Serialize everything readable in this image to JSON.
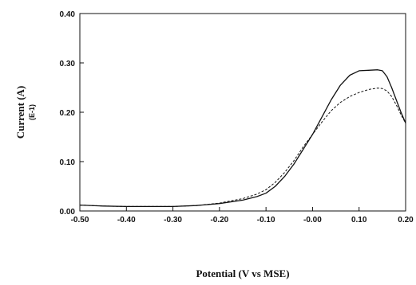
{
  "chart_data": {
    "type": "line",
    "title": "",
    "xlabel": "Potential (V vs MSE)",
    "ylabel": "Current (A)",
    "ylabel_unit": "(E-1)",
    "xlim": [
      -0.5,
      0.2
    ],
    "ylim": [
      0.0,
      0.4
    ],
    "x_ticks": [
      "-0.50",
      "-0.40",
      "-0.30",
      "-0.20",
      "-0.10",
      "-0.00",
      "0.10",
      "0.20"
    ],
    "y_ticks": [
      "0.00",
      "0.10",
      "0.20",
      "0.30",
      "0.40"
    ],
    "grid": false,
    "legend": "none",
    "series": [
      {
        "style": "solid",
        "color": "#111111",
        "points": [
          [
            -0.5,
            0.012
          ],
          [
            -0.45,
            0.01
          ],
          [
            -0.4,
            0.009
          ],
          [
            -0.35,
            0.009
          ],
          [
            -0.3,
            0.009
          ],
          [
            -0.25,
            0.011
          ],
          [
            -0.2,
            0.015
          ],
          [
            -0.15,
            0.022
          ],
          [
            -0.12,
            0.029
          ],
          [
            -0.1,
            0.036
          ],
          [
            -0.08,
            0.05
          ],
          [
            -0.06,
            0.07
          ],
          [
            -0.04,
            0.095
          ],
          [
            -0.02,
            0.125
          ],
          [
            0.0,
            0.155
          ],
          [
            0.02,
            0.19
          ],
          [
            0.04,
            0.225
          ],
          [
            0.06,
            0.255
          ],
          [
            0.08,
            0.275
          ],
          [
            0.1,
            0.284
          ],
          [
            0.12,
            0.285
          ],
          [
            0.14,
            0.286
          ],
          [
            0.15,
            0.284
          ],
          [
            0.16,
            0.272
          ],
          [
            0.17,
            0.25
          ],
          [
            0.18,
            0.225
          ],
          [
            0.19,
            0.2
          ],
          [
            0.2,
            0.178
          ]
        ]
      },
      {
        "style": "dashed",
        "color": "#111111",
        "points": [
          [
            -0.5,
            0.012
          ],
          [
            -0.45,
            0.01
          ],
          [
            -0.4,
            0.009
          ],
          [
            -0.35,
            0.009
          ],
          [
            -0.3,
            0.009
          ],
          [
            -0.25,
            0.011
          ],
          [
            -0.2,
            0.016
          ],
          [
            -0.15,
            0.025
          ],
          [
            -0.12,
            0.034
          ],
          [
            -0.1,
            0.043
          ],
          [
            -0.08,
            0.058
          ],
          [
            -0.06,
            0.078
          ],
          [
            -0.04,
            0.102
          ],
          [
            -0.02,
            0.13
          ],
          [
            0.0,
            0.155
          ],
          [
            0.02,
            0.18
          ],
          [
            0.04,
            0.203
          ],
          [
            0.06,
            0.22
          ],
          [
            0.08,
            0.232
          ],
          [
            0.1,
            0.24
          ],
          [
            0.12,
            0.246
          ],
          [
            0.14,
            0.249
          ],
          [
            0.15,
            0.248
          ],
          [
            0.16,
            0.243
          ],
          [
            0.17,
            0.232
          ],
          [
            0.18,
            0.215
          ],
          [
            0.19,
            0.195
          ],
          [
            0.2,
            0.178
          ]
        ]
      }
    ]
  }
}
